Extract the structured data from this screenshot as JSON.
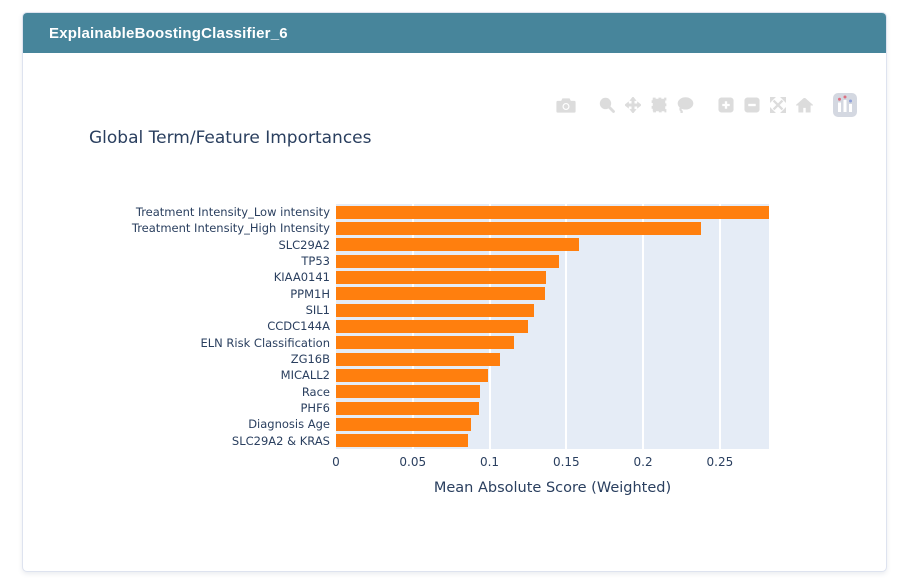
{
  "window": {
    "title": "ExplainableBoostingClassifier_6"
  },
  "modebar": {
    "icon_names": [
      "camera-icon",
      "zoom-icon",
      "pan-icon",
      "box-select-icon",
      "lasso-select-icon",
      "zoom-in-icon",
      "zoom-out-icon",
      "autoscale-icon",
      "reset-axes-icon",
      "plotly-logo-icon"
    ]
  },
  "chart_data": {
    "type": "bar",
    "orientation": "horizontal",
    "title": "Global Term/Feature Importances",
    "xlabel": "Mean Absolute Score (Weighted)",
    "ylabel": "",
    "categories": [
      "Treatment Intensity_Low intensity",
      "Treatment Intensity_High Intensity",
      "SLC29A2",
      "TP53",
      "KIAA0141",
      "PPM1H",
      "SIL1",
      "CCDC144A",
      "ELN Risk Classification",
      "ZG16B",
      "MICALL2",
      "Race",
      "PHF6",
      "Diagnosis Age",
      "SLC29A2 & KRAS"
    ],
    "values": [
      0.282,
      0.238,
      0.158,
      0.145,
      0.137,
      0.136,
      0.129,
      0.125,
      0.116,
      0.107,
      0.099,
      0.094,
      0.093,
      0.088,
      0.086
    ],
    "xlim": [
      0,
      0.282
    ],
    "xticks": [
      0,
      0.05,
      0.1,
      0.15,
      0.2,
      0.25
    ],
    "xtick_labels": [
      "0",
      "0.05",
      "0.1",
      "0.15",
      "0.2",
      "0.25"
    ],
    "grid": true,
    "legend": "none",
    "colors": {
      "bar": "#ff7f0e",
      "plot_bg": "#e5ecf6",
      "grid_line": "#ffffff",
      "text": "#2a3f5f",
      "header_bg": "#47859b",
      "header_text": "#ffffff"
    }
  }
}
